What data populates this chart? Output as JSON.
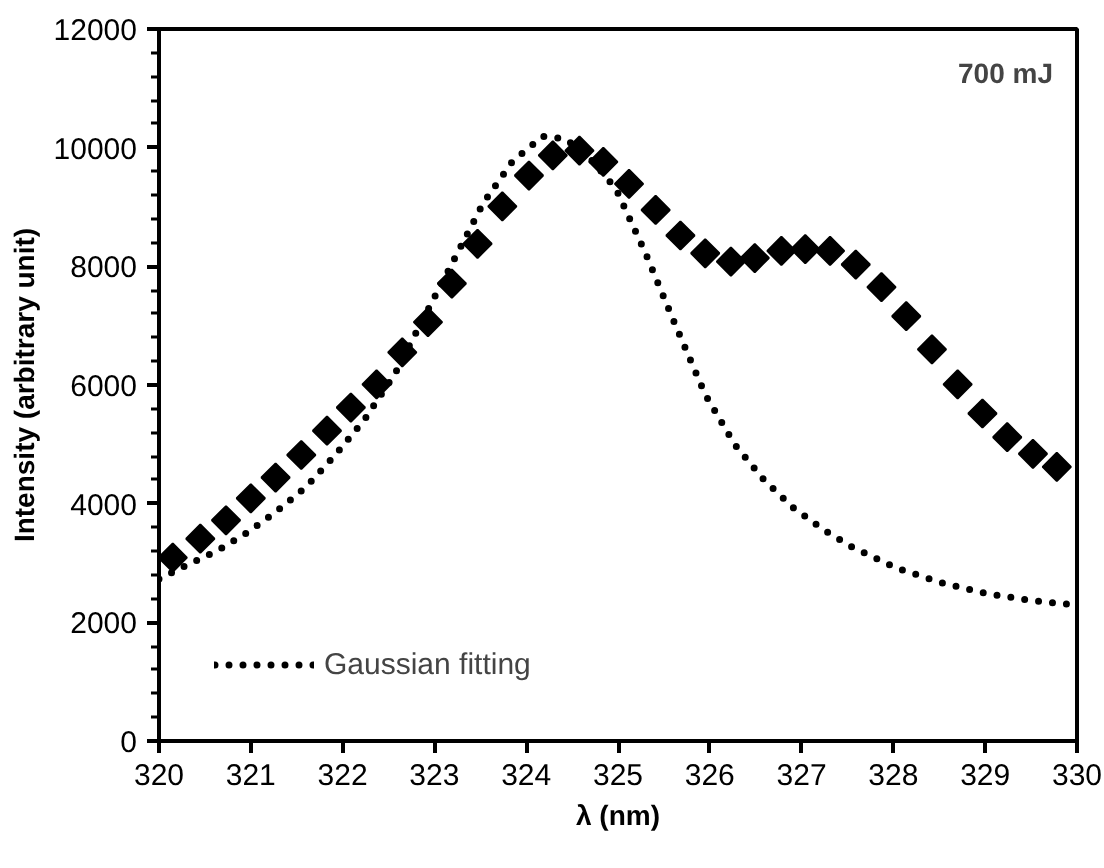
{
  "chart_data": {
    "type": "scatter",
    "xlabel": "λ (nm)",
    "ylabel": "Intensity (arbitrary unit)",
    "annotations": [
      "700 mJ"
    ],
    "xlim": [
      320,
      330
    ],
    "xticks": [
      320,
      321,
      322,
      323,
      324,
      325,
      326,
      327,
      328,
      329,
      330
    ],
    "ylim": [
      0,
      12000
    ],
    "yticks": [
      0,
      2000,
      4000,
      6000,
      8000,
      10000,
      12000
    ],
    "grid": false,
    "legend": "bottom left",
    "series": [
      {
        "marker": "diamond",
        "color": "#000000",
        "x": [
          320.15,
          320.45,
          320.73,
          321.0,
          321.27,
          321.55,
          321.83,
          322.09,
          322.37,
          322.65,
          322.93,
          323.19,
          323.47,
          323.74,
          324.03,
          324.29,
          324.58,
          324.84,
          325.12,
          325.41,
          325.68,
          325.95,
          326.23,
          326.49,
          326.78,
          327.04,
          327.31,
          327.59,
          327.87,
          328.14,
          328.42,
          328.7,
          328.97,
          329.24,
          329.52,
          329.78
        ],
        "values": [
          3090,
          3410,
          3720,
          4090,
          4440,
          4820,
          5230,
          5620,
          6010,
          6550,
          7060,
          7710,
          8380,
          9010,
          9530,
          9870,
          9950,
          9760,
          9390,
          8950,
          8520,
          8220,
          8080,
          8140,
          8260,
          8290,
          8260,
          8030,
          7650,
          7160,
          6600,
          6010,
          5520,
          5120,
          4840,
          4620
        ]
      },
      {
        "type": "line",
        "name": "Gaussian fitting",
        "marker": "none",
        "line_style": "dotted",
        "color": "#000000",
        "x": [
          320,
          320.31,
          320.64,
          320.96,
          321.28,
          321.6,
          321.92,
          322.24,
          322.57,
          322.89,
          323.21,
          323.53,
          323.85,
          324.18,
          324.42,
          324.66,
          324.98,
          325.3,
          325.62,
          325.95,
          326.27,
          326.59,
          326.91,
          327.23,
          327.55,
          328.04,
          328.52,
          329.0,
          329.49,
          330
        ],
        "values": [
          2730,
          2970,
          3210,
          3510,
          3870,
          4280,
          4820,
          5420,
          6190,
          7150,
          8100,
          9060,
          9770,
          10190,
          10150,
          9890,
          9300,
          8220,
          7030,
          5840,
          5000,
          4400,
          3930,
          3570,
          3270,
          2910,
          2670,
          2490,
          2370,
          2290
        ]
      }
    ]
  }
}
